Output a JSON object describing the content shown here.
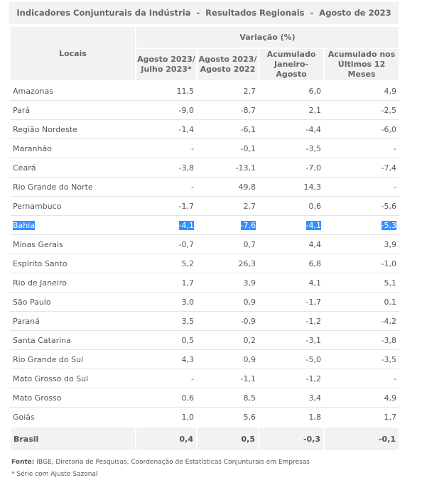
{
  "title": "Indicadores Conjunturais da Indústria  -  Resultados Regionais  -  Agosto de 2023",
  "table": {
    "header": {
      "locais": "Locais",
      "group": "Variação (%)",
      "columns": [
        "Agosto 2023/\nJulho 2023*",
        "Agosto 2023/\nAgosto 2022",
        "Acumulado\nJaneiro-Agosto",
        "Acumulado nos\nÚltimos 12 Meses"
      ]
    },
    "rows": [
      [
        "Amazonas",
        "11,5",
        "2,7",
        "6,0",
        "4,9"
      ],
      [
        "Pará",
        "-9,0",
        "-8,7",
        "2,1",
        "-2,5"
      ],
      [
        "Região Nordeste",
        "-1,4",
        "-6,1",
        "-4,4",
        "-6,0"
      ],
      [
        "Maranhão",
        "-",
        "-0,1",
        "-3,5",
        "-"
      ],
      [
        "Ceará",
        "-3,8",
        "-13,1",
        "-7,0",
        "-7,4"
      ],
      [
        "Rio Grande do Norte",
        "-",
        "49,8",
        "14,3",
        "-"
      ],
      [
        "Pernambuco",
        "-1,7",
        "2,7",
        "0,6",
        "-5,6"
      ],
      [
        "Bahia",
        "-4,1",
        "-7,6",
        "-4,1",
        "-5,3"
      ],
      [
        "Minas Gerais",
        "-0,7",
        "0,7",
        "4,4",
        "3,9"
      ],
      [
        "Espírito Santo",
        "5,2",
        "26,3",
        "6,8",
        "-1,0"
      ],
      [
        "Rio de Janeiro",
        "1,7",
        "3,9",
        "4,1",
        "5,1"
      ],
      [
        "São Paulo",
        "3,0",
        "0,9",
        "-1,7",
        "0,1"
      ],
      [
        "Paraná",
        "3,5",
        "-0,9",
        "-1,2",
        "-4,2"
      ],
      [
        "Santa Catarina",
        "0,5",
        "0,2",
        "-3,1",
        "-3,8"
      ],
      [
        "Rio Grande do Sul",
        "4,3",
        "0,9",
        "-5,0",
        "-3,5"
      ],
      [
        "Mato Grosso do Sul",
        "-",
        "-1,1",
        "-1,2",
        "-"
      ],
      [
        "Mato Grosso",
        "0,6",
        "8,5",
        "3,4",
        "4,9"
      ],
      [
        "Goiás",
        "1,0",
        "5,6",
        "1,8",
        "1,7"
      ]
    ],
    "total": [
      "Brasil",
      "0,4",
      "0,5",
      "-0,3",
      "-0,1"
    ]
  },
  "footer": {
    "source_label": "Fonte:",
    "source": "IBGE, Diretoria de Pesquisas, Coordenação de Estatísticas Conjunturais em Empresas",
    "note": "* Série com Ajuste Sazonal"
  }
}
